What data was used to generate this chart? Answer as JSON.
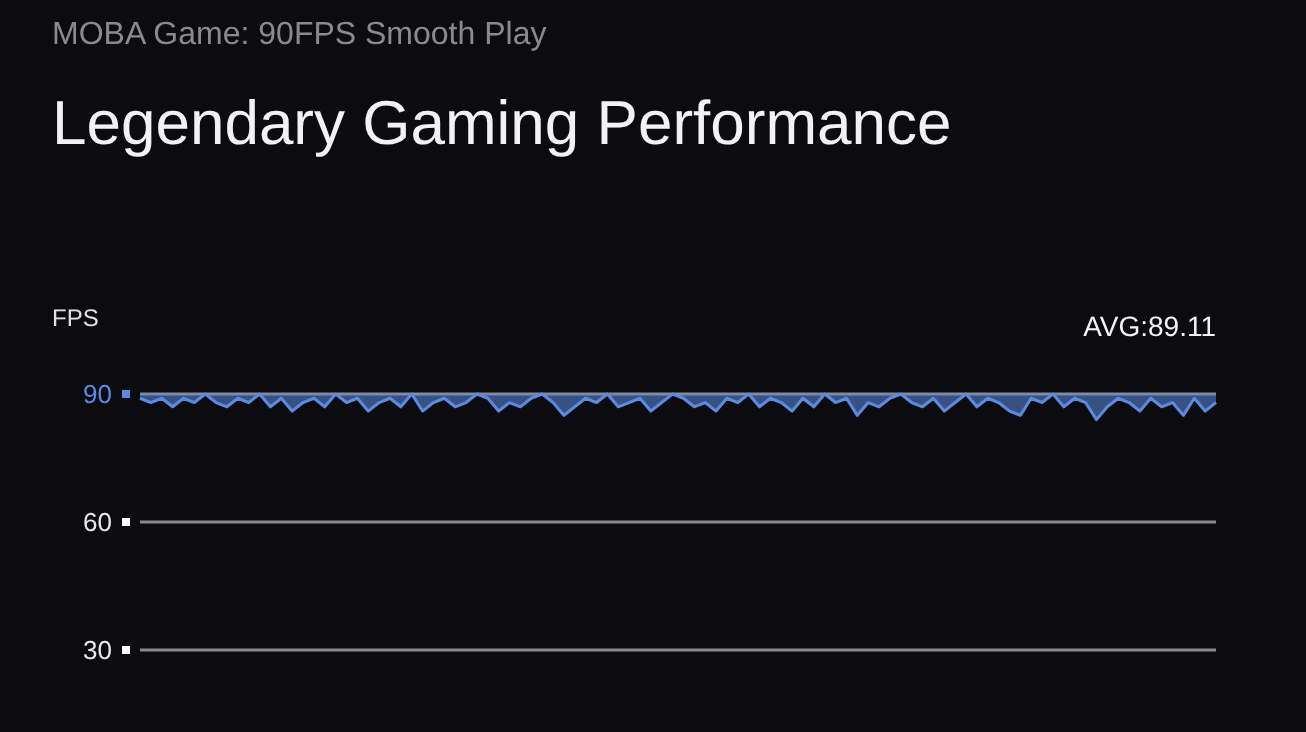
{
  "chart_data": {
    "type": "line",
    "subtitle": "MOBA Game: 90FPS Smooth Play",
    "title": "Legendary Gaming Performance",
    "ylabel": "FPS",
    "annotations": [
      "AVG:89.11"
    ],
    "categories": [
      null,
      null,
      null,
      null,
      null,
      null,
      null,
      null,
      null,
      null,
      null,
      null,
      null,
      null,
      null,
      null,
      null,
      null,
      null,
      null,
      null,
      null,
      null,
      null,
      null,
      null,
      null,
      null,
      null,
      null,
      null,
      null,
      null,
      null,
      null,
      null,
      null,
      null,
      null,
      null,
      null,
      null,
      null,
      null,
      null,
      null,
      null,
      null,
      null,
      null,
      null,
      null,
      null,
      null,
      null,
      null,
      null,
      null,
      null,
      null,
      null,
      null,
      null,
      null,
      null,
      null,
      null,
      null,
      null,
      null,
      null,
      null,
      null,
      null,
      null,
      null,
      null,
      null,
      null,
      null,
      null,
      null,
      null,
      null,
      null,
      null,
      null,
      null,
      null,
      null,
      null,
      null,
      null,
      null,
      null,
      null,
      null,
      null,
      null,
      null
    ],
    "series": [
      {
        "color": "#5b8be0",
        "values": [
          89,
          88,
          89,
          87,
          89,
          88,
          90,
          88,
          87,
          89,
          88,
          90,
          87,
          89,
          86,
          88,
          89,
          87,
          90,
          88,
          89,
          86,
          88,
          89,
          87,
          90,
          86,
          88,
          89,
          87,
          88,
          90,
          89,
          86,
          88,
          87,
          89,
          90,
          88,
          85,
          87,
          89,
          88,
          90,
          87,
          88,
          89,
          86,
          88,
          90,
          89,
          87,
          88,
          86,
          89,
          88,
          90,
          87,
          89,
          88,
          86,
          89,
          87,
          90,
          88,
          89,
          85,
          88,
          87,
          89,
          90,
          88,
          87,
          89,
          86,
          88,
          90,
          87,
          89,
          88,
          86,
          85,
          89,
          88,
          90,
          87,
          89,
          88,
          84,
          87,
          89,
          88,
          86,
          89,
          87,
          88,
          85,
          89,
          86,
          88
        ]
      }
    ],
    "ylim": [
      30,
      90
    ],
    "yticks": [
      30,
      60,
      90
    ],
    "grid": "y",
    "marker": "none",
    "line_style": "solid"
  }
}
